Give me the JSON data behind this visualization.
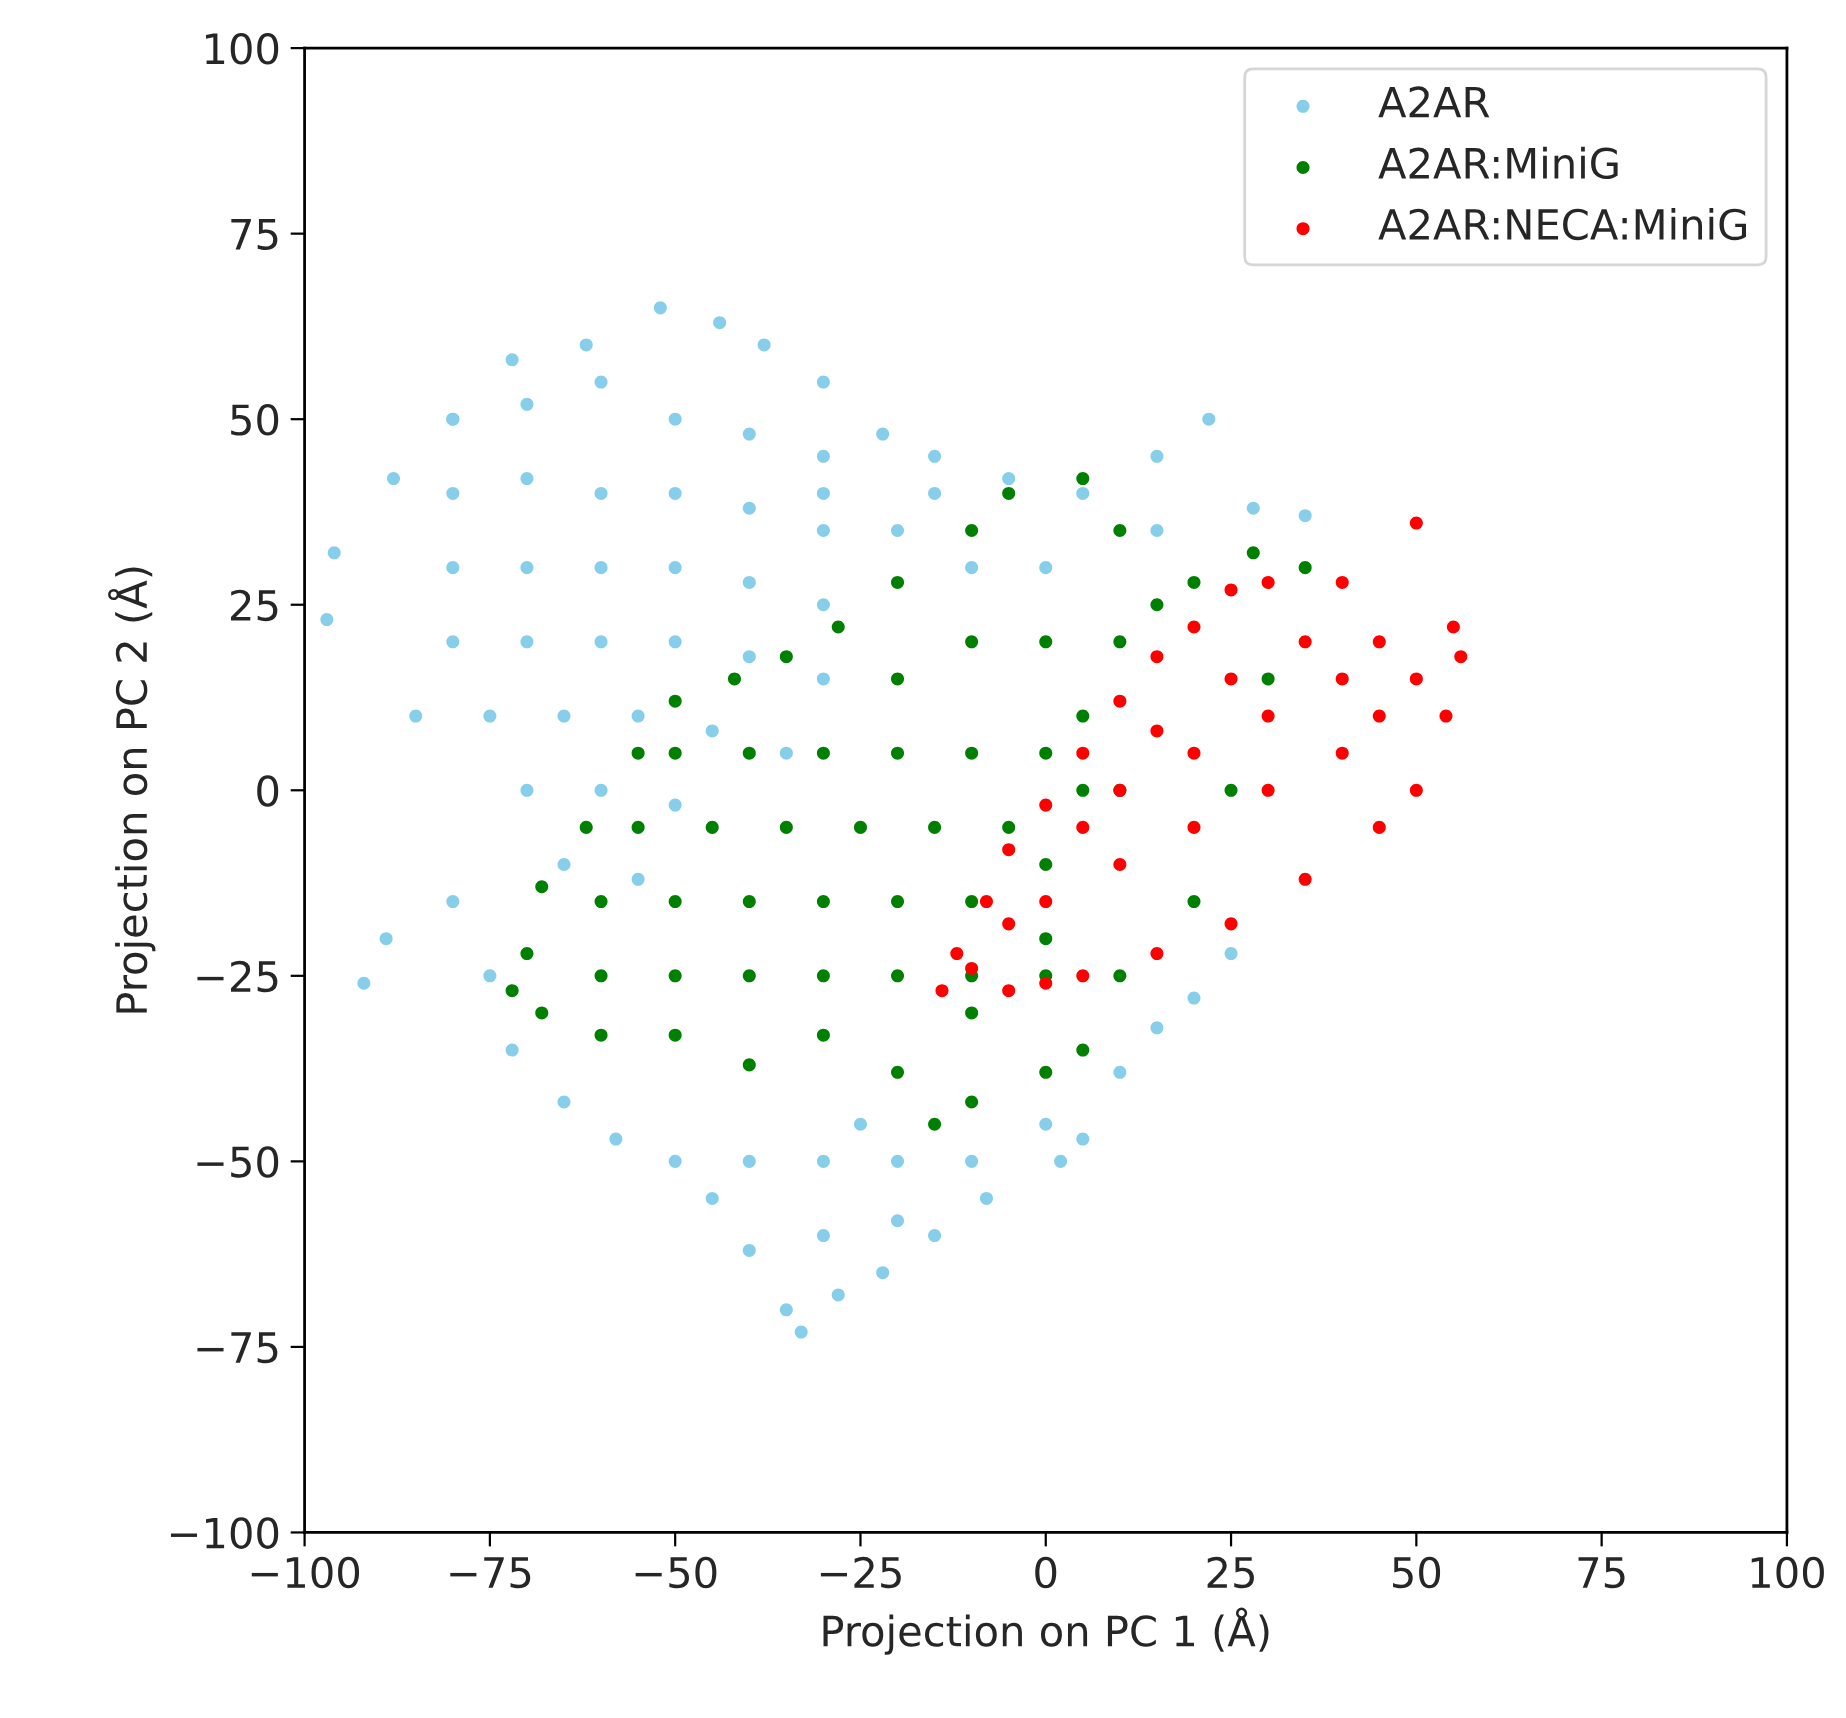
{
  "chart_data": {
    "type": "scatter",
    "xlabel": "Projection on PC 1 (Å)",
    "ylabel": "Projection on PC 2 (Å)",
    "xlim": [
      -100,
      100
    ],
    "ylim": [
      -100,
      100
    ],
    "xticks": [
      {
        "value": -100,
        "label": "−100"
      },
      {
        "value": -75,
        "label": "−75"
      },
      {
        "value": -50,
        "label": "−50"
      },
      {
        "value": -25,
        "label": "−25"
      },
      0,
      25,
      50,
      75,
      100
    ],
    "yticks": [
      {
        "value": -100,
        "label": "−100"
      },
      {
        "value": -75,
        "label": "−75"
      },
      {
        "value": -50,
        "label": "−50"
      },
      {
        "value": -25,
        "label": "−25"
      },
      0,
      25,
      50,
      75,
      100
    ],
    "grid": false,
    "legend": "top right",
    "marker": "circle",
    "series": [
      {
        "name": "A2AR",
        "color": "#87ceeb",
        "x": [
          -97,
          -96,
          -88,
          -80,
          -72,
          -62,
          -52,
          -44,
          -38,
          -30,
          -22,
          -15,
          -5,
          5,
          15,
          22,
          28,
          35,
          -85,
          -89,
          -92,
          -80,
          -75,
          -72,
          -65,
          -58,
          -50,
          -45,
          -40,
          -35,
          -33,
          -28,
          -22,
          -15,
          -8,
          2,
          5,
          10,
          15,
          20,
          25,
          -80,
          -70,
          -60,
          -50,
          -40,
          -30,
          -80,
          -70,
          -60,
          -50,
          -40,
          -30,
          -80,
          -70,
          -60,
          -50,
          -40,
          -30,
          -80,
          -70,
          -60,
          -50,
          -40,
          -30,
          -75,
          -65,
          -55,
          -45,
          -35,
          -70,
          -60,
          -50,
          -65,
          -55,
          -40,
          -30,
          -20,
          -10,
          -30,
          -20,
          -25,
          0,
          -20,
          -10,
          0,
          15,
          -30,
          -15
        ],
        "values": [
          23,
          32,
          42,
          50,
          58,
          60,
          65,
          63,
          60,
          55,
          48,
          45,
          42,
          40,
          45,
          50,
          38,
          37,
          10,
          -20,
          -26,
          -15,
          -25,
          -35,
          -42,
          -47,
          -50,
          -55,
          -62,
          -70,
          -73,
          -68,
          -65,
          -60,
          -55,
          -50,
          -47,
          -38,
          -32,
          -28,
          -22,
          50,
          52,
          55,
          50,
          48,
          45,
          40,
          42,
          40,
          40,
          38,
          35,
          30,
          30,
          30,
          30,
          28,
          25,
          20,
          20,
          20,
          20,
          18,
          15,
          10,
          10,
          10,
          8,
          5,
          0,
          0,
          -2,
          -10,
          -12,
          -50,
          -50,
          -50,
          -50,
          -60,
          -58,
          -45,
          -45,
          35,
          30,
          30,
          35,
          40,
          40
        ]
      },
      {
        "name": "A2AR:MiniG",
        "color": "#008000",
        "x": [
          -72,
          -70,
          -68,
          -62,
          -55,
          -50,
          -42,
          -35,
          -28,
          -20,
          -10,
          -5,
          5,
          10,
          20,
          28,
          35,
          30,
          25,
          20,
          10,
          5,
          0,
          -10,
          -15,
          -20,
          -30,
          -40,
          -50,
          -60,
          -68,
          -60,
          -50,
          -40,
          -30,
          -20,
          -10,
          0,
          -60,
          -50,
          -40,
          -30,
          -20,
          -10,
          0,
          -55,
          -45,
          -35,
          -25,
          -15,
          -5,
          5,
          -50,
          -40,
          -30,
          -20,
          -10,
          0,
          -20,
          -10,
          0,
          10,
          5,
          10,
          0,
          -10,
          15
        ],
        "values": [
          -27,
          -22,
          -13,
          -5,
          5,
          12,
          15,
          18,
          22,
          28,
          35,
          40,
          42,
          35,
          28,
          32,
          30,
          15,
          0,
          -15,
          -25,
          -35,
          -38,
          -42,
          -45,
          -38,
          -33,
          -37,
          -33,
          -33,
          -30,
          -25,
          -25,
          -25,
          -25,
          -25,
          -25,
          -25,
          -15,
          -15,
          -15,
          -15,
          -15,
          -15,
          -10,
          -5,
          -5,
          -5,
          -5,
          -5,
          -5,
          0,
          5,
          5,
          5,
          5,
          5,
          5,
          15,
          20,
          20,
          20,
          10,
          0,
          -20,
          -30,
          25
        ]
      },
      {
        "name": "A2AR:NECA:MiniG",
        "color": "#ff0000",
        "x": [
          -14,
          -12,
          -8,
          -5,
          0,
          5,
          10,
          15,
          20,
          25,
          30,
          40,
          50,
          55,
          56,
          54,
          50,
          45,
          35,
          25,
          15,
          5,
          0,
          -5,
          -10,
          10,
          20,
          30,
          40,
          45,
          20,
          30,
          40,
          0,
          10,
          35,
          25,
          15,
          5,
          -5,
          45,
          50
        ],
        "values": [
          -27,
          -22,
          -15,
          -8,
          -2,
          5,
          12,
          18,
          22,
          27,
          28,
          28,
          36,
          22,
          18,
          10,
          0,
          -5,
          -12,
          -18,
          -22,
          -25,
          -26,
          -27,
          -24,
          0,
          5,
          10,
          15,
          20,
          -5,
          0,
          5,
          -15,
          -10,
          20,
          15,
          8,
          -5,
          -18,
          10,
          15
        ]
      }
    ]
  }
}
